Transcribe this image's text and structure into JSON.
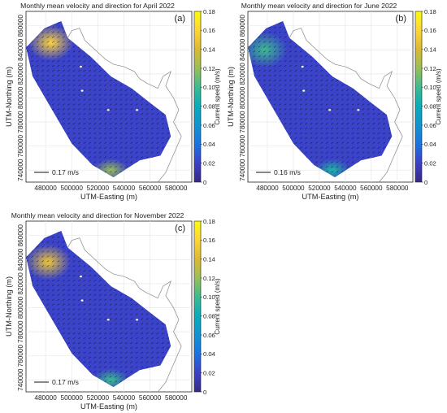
{
  "chart_data": [
    {
      "type": "heatmap",
      "panel_label": "(a)",
      "title": "Monthly mean velocity and direction for April 2022",
      "xlabel": "UTM-Easting (m)",
      "ylabel": "UTM-Northing (m)",
      "colorbar_label": "Current speed (m/s)",
      "xticks": [
        "480000",
        "500000",
        "520000",
        "540000",
        "560000",
        "580000"
      ],
      "yticks": [
        "740000",
        "760000",
        "780000",
        "800000",
        "820000",
        "840000",
        "860000"
      ],
      "cticks": [
        "0",
        "0.02",
        "0.04",
        "0.06",
        "0.08",
        "0.10",
        "0.12",
        "0.14",
        "0.16",
        "0.18"
      ],
      "xlim": [
        465000,
        592000
      ],
      "ylim": [
        730000,
        872000
      ],
      "clim": [
        0,
        0.18
      ],
      "reference_arrow": "0.17 m/s",
      "colormap": "parula",
      "hotspots": [
        {
          "x": 484000,
          "y": 846000,
          "speed": 0.16
        },
        {
          "x": 530000,
          "y": 740000,
          "speed": 0.12
        }
      ]
    },
    {
      "type": "heatmap",
      "panel_label": "(b)",
      "title": "Monthly mean velocity and direction for June 2022",
      "xlabel": "UTM-Easting (m)",
      "ylabel": "UTM-Northing (m)",
      "colorbar_label": "Current speed (m/s)",
      "xticks": [
        "480000",
        "500000",
        "520000",
        "540000",
        "560000",
        "580000"
      ],
      "yticks": [
        "740000",
        "760000",
        "780000",
        "800000",
        "820000",
        "840000",
        "860000"
      ],
      "cticks": [
        "0",
        "0.02",
        "0.04",
        "0.06",
        "0.08",
        "0.10",
        "0.12",
        "0.14",
        "0.16",
        "0.18"
      ],
      "xlim": [
        465000,
        592000
      ],
      "ylim": [
        730000,
        872000
      ],
      "clim": [
        0,
        0.18
      ],
      "reference_arrow": "0.16 m/s",
      "colormap": "parula",
      "hotspots": [
        {
          "x": 478000,
          "y": 840000,
          "speed": 0.1
        },
        {
          "x": 530000,
          "y": 740000,
          "speed": 0.09
        }
      ]
    },
    {
      "type": "heatmap",
      "panel_label": "(c)",
      "title": "Monthly mean velocity and direction for November 2022",
      "xlabel": "UTM-Easting (m)",
      "ylabel": "UTM-Northing (m)",
      "colorbar_label": "Current speed (m/s)",
      "xticks": [
        "480000",
        "500000",
        "520000",
        "540000",
        "560000",
        "580000"
      ],
      "yticks": [
        "740000",
        "760000",
        "780000",
        "800000",
        "820000",
        "840000",
        "860000"
      ],
      "cticks": [
        "0",
        "0.02",
        "0.04",
        "0.06",
        "0.08",
        "0.10",
        "0.12",
        "0.14",
        "0.16",
        "0.18"
      ],
      "xlim": [
        465000,
        592000
      ],
      "ylim": [
        730000,
        872000
      ],
      "clim": [
        0,
        0.18
      ],
      "reference_arrow": "0.17 m/s",
      "colormap": "parula",
      "hotspots": [
        {
          "x": 482000,
          "y": 838000,
          "speed": 0.15
        },
        {
          "x": 530000,
          "y": 740000,
          "speed": 0.1
        }
      ]
    }
  ],
  "colors": {
    "parula": [
      "#352a87",
      "#3d3fc9",
      "#1973e4",
      "#0f94d3",
      "#07adb9",
      "#3bbc8f",
      "#98bf58",
      "#dcb931",
      "#fed43a",
      "#f9fb0e"
    ],
    "domain_base": "#3b43c8",
    "coast": "#888888"
  }
}
